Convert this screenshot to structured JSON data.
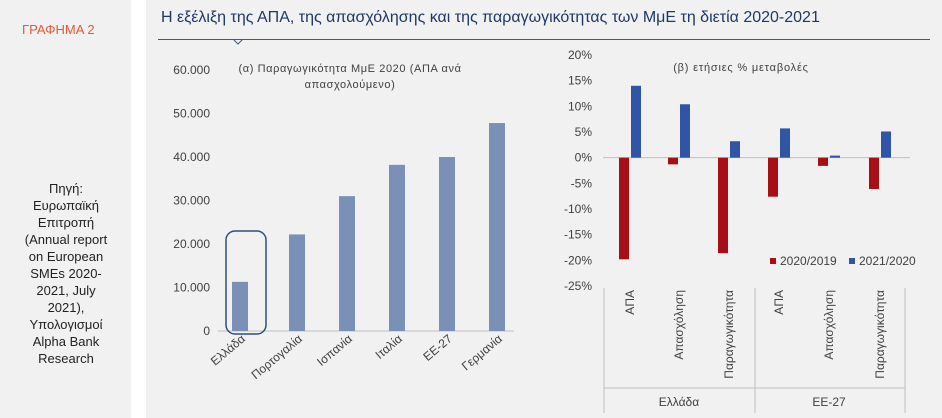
{
  "figure_label": "ΓΡΑΦΗΜΑ 2",
  "title": "Η εξέλιξη της ΑΠΑ, της απασχόλησης και της παραγωγικότητας των ΜμΕ τη διετία 2020-2021",
  "source_lines": [
    "Πηγή:",
    "Ευρωπαϊκή",
    "Επιτροπή",
    "(Annual report",
    "on European",
    "SMEs 2020-",
    "2021, July",
    "2021),",
    "Υπολογισμοί",
    "Alpha Bank",
    "Research"
  ],
  "colors": {
    "title": "#1f3864",
    "bar_a": "#7b90b6",
    "series_2020_2019": "#a50f15",
    "series_2021_2020": "#2f55a4",
    "highlight": "#2f4f80",
    "figure_label": "#e05a3a"
  },
  "chart_data": [
    {
      "type": "bar",
      "title_lines": [
        "(α) Παραγωγικότητα ΜμΕ 2020 (ΑΠΑ ανά",
        "απασχολούμενο)"
      ],
      "categories": [
        "Ελλάδα",
        "Πορτογαλία",
        "Ισπανία",
        "Ιταλία",
        "ΕΕ-27",
        "Γερμανία"
      ],
      "values": [
        11300,
        22200,
        31000,
        38200,
        40000,
        47800
      ],
      "ylim": [
        0,
        60000
      ],
      "yticks": [
        "0",
        "10.000",
        "20.000",
        "30.000",
        "40.000",
        "50.000",
        "60.000"
      ],
      "highlighted_category": "Ελλάδα",
      "grid": false
    },
    {
      "type": "bar",
      "title": "(β) ετήσιες % μεταβολές",
      "categories": [
        "ΑΠΑ",
        "Απασχόληση",
        "Παραγωγικότητα",
        "ΑΠΑ",
        "Απασχόληση",
        "Παραγωγικότητα"
      ],
      "groups": [
        {
          "label": "Ελλάδα",
          "span": [
            0,
            2
          ]
        },
        {
          "label": "ΕΕ-27",
          "span": [
            3,
            5
          ]
        }
      ],
      "series": [
        {
          "name": "2020/2019",
          "values": [
            -19.8,
            -1.3,
            -18.6,
            -7.6,
            -1.6,
            -6.1
          ]
        },
        {
          "name": "2021/2020",
          "values": [
            14.0,
            10.4,
            3.2,
            5.7,
            0.4,
            5.1
          ]
        }
      ],
      "ylim": [
        -25,
        20
      ],
      "yticks": [
        "-25%",
        "-20%",
        "-15%",
        "-10%",
        "-5%",
        "0%",
        "5%",
        "10%",
        "15%",
        "20%"
      ],
      "legend": "bottom-right",
      "grid": false
    }
  ]
}
